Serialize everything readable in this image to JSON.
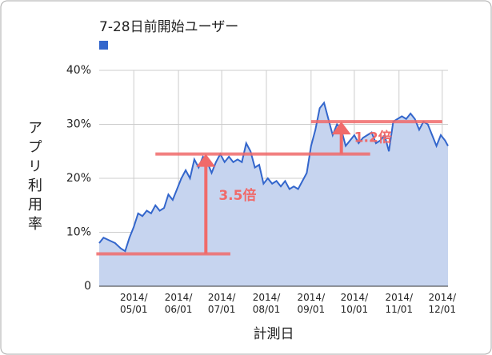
{
  "chart_data": {
    "type": "area",
    "x_label": "計測日",
    "y_label": "アプリ利用率",
    "x": [
      "2014/04/07",
      "2014/04/10",
      "2014/04/14",
      "2014/04/18",
      "2014/04/22",
      "2014/04/25",
      "2014/04/28",
      "2014/05/01",
      "2014/05/04",
      "2014/05/07",
      "2014/05/10",
      "2014/05/13",
      "2014/05/16",
      "2014/05/19",
      "2014/05/22",
      "2014/05/25",
      "2014/05/28",
      "2014/05/31",
      "2014/06/03",
      "2014/06/06",
      "2014/06/09",
      "2014/06/12",
      "2014/06/15",
      "2014/06/18",
      "2014/06/21",
      "2014/06/24",
      "2014/06/27",
      "2014/06/30",
      "2014/07/03",
      "2014/07/06",
      "2014/07/09",
      "2014/07/12",
      "2014/07/15",
      "2014/07/18",
      "2014/07/21",
      "2014/07/24",
      "2014/07/27",
      "2014/07/30",
      "2014/08/02",
      "2014/08/05",
      "2014/08/08",
      "2014/08/11",
      "2014/08/14",
      "2014/08/17",
      "2014/08/20",
      "2014/08/23",
      "2014/08/26",
      "2014/08/29",
      "2014/09/01",
      "2014/09/04",
      "2014/09/07",
      "2014/09/10",
      "2014/09/13",
      "2014/09/16",
      "2014/09/19",
      "2014/09/22",
      "2014/09/25",
      "2014/09/28",
      "2014/10/01",
      "2014/10/04",
      "2014/10/07",
      "2014/10/10",
      "2014/10/13",
      "2014/10/16",
      "2014/10/19",
      "2014/10/22",
      "2014/10/25",
      "2014/10/28",
      "2014/10/31",
      "2014/11/03",
      "2014/11/06",
      "2014/11/09",
      "2014/11/12",
      "2014/11/15",
      "2014/11/18",
      "2014/11/21",
      "2014/11/24",
      "2014/11/27",
      "2014/11/30",
      "2014/12/03",
      "2014/12/05"
    ],
    "series": [
      {
        "name": "7-28日前開始ユーザー",
        "color": "#3366cc",
        "fill": "#c6d4ef",
        "values": [
          8,
          9,
          8.5,
          8,
          7,
          6.5,
          9,
          11,
          13.5,
          13,
          14,
          13.5,
          15,
          14,
          14.5,
          17,
          16,
          18,
          20,
          21.5,
          20,
          23.5,
          22,
          24,
          23,
          21,
          23,
          24.5,
          23,
          24,
          23,
          23.5,
          23,
          26.5,
          25,
          22,
          22.5,
          19,
          20,
          19,
          19.5,
          18.5,
          19.5,
          18,
          18.5,
          18,
          19.5,
          21,
          26,
          29,
          33,
          34,
          31,
          28,
          30,
          29,
          26,
          27,
          28,
          26.5,
          27.5,
          28,
          28.5,
          26.5,
          27,
          28,
          25,
          30.5,
          31,
          31.5,
          31,
          32,
          31,
          29,
          30.5,
          30,
          28,
          26,
          28,
          27,
          26
        ]
      }
    ],
    "xlim": [
      "2014/04/07",
      "2014/12/05"
    ],
    "xticks": [
      "2014/05/01",
      "2014/06/01",
      "2014/07/01",
      "2014/08/01",
      "2014/09/01",
      "2014/10/01",
      "2014/11/01",
      "2014/12/01"
    ],
    "ylim": [
      0,
      40
    ],
    "yticks": [
      0,
      {
        "value": 10,
        "label": "10%"
      },
      {
        "value": 20,
        "label": "20%"
      },
      {
        "value": 30,
        "label": "30%"
      },
      {
        "value": 40,
        "label": "40%"
      }
    ],
    "grid": true,
    "annotation_color": "#f06a6a",
    "reference_lines": [
      {
        "y": 6,
        "x": [
          "2014/04/05",
          "2014/07/07"
        ]
      },
      {
        "y": 24.5,
        "x": [
          "2014/05/16",
          "2014/10/12"
        ]
      },
      {
        "y": 30.5,
        "x": [
          "2014/09/01",
          "2014/12/01"
        ]
      }
    ],
    "arrows": [
      {
        "x": "2014/06/20",
        "from": 6,
        "to": 24.5,
        "label": "3.5倍"
      },
      {
        "x": "2014/09/22",
        "from": 24.5,
        "to": 30.5,
        "label": "1.2倍"
      }
    ]
  }
}
